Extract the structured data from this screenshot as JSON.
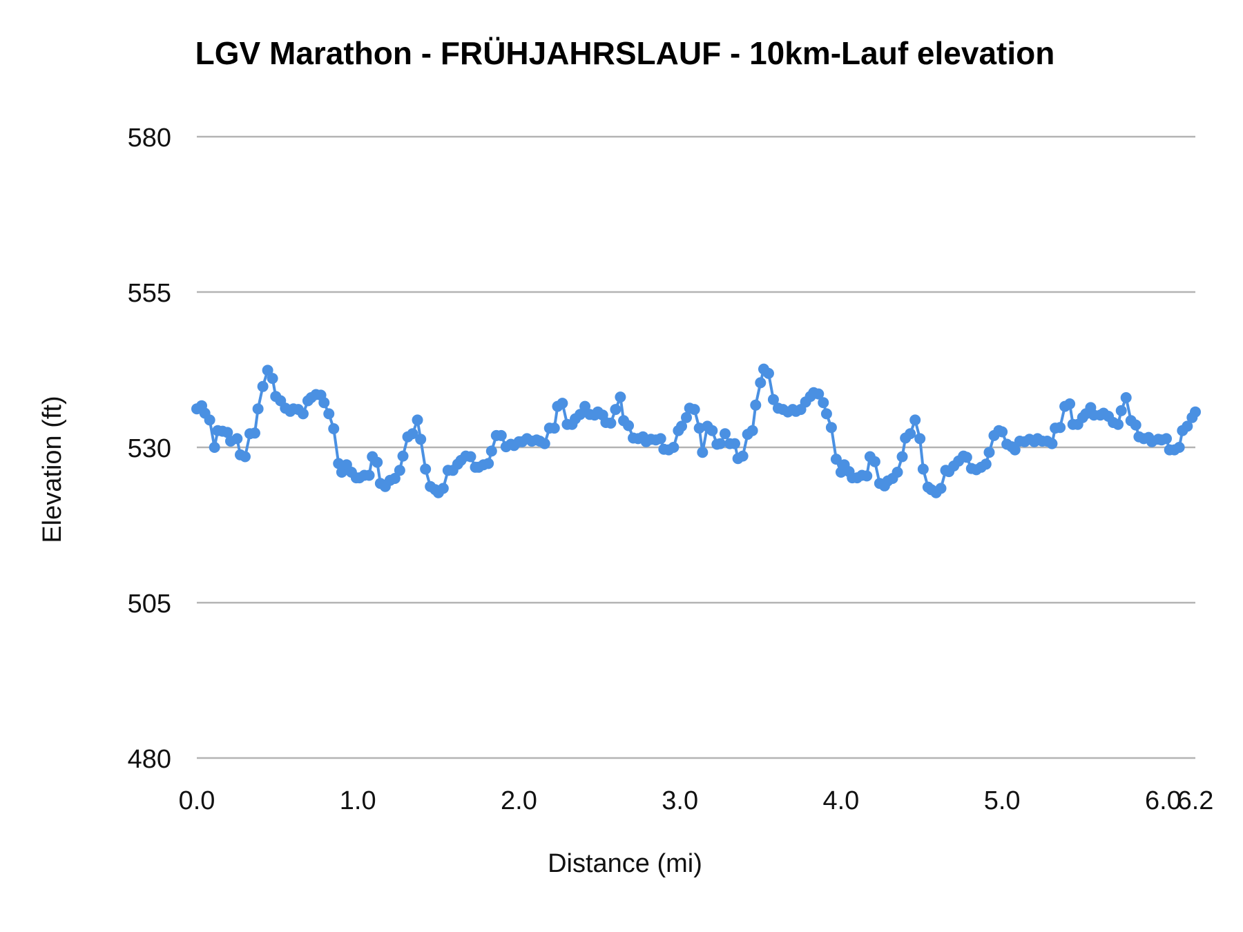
{
  "chart_data": {
    "type": "line",
    "title": "LGV Marathon - FRÜHJAHRSLAUF - 10km-Lauf elevation",
    "xlabel": "Distance (mi)",
    "ylabel": "Elevation (ft)",
    "xlim": [
      0,
      6.2
    ],
    "ylim": [
      480,
      580
    ],
    "x_ticks": [
      {
        "value": 0,
        "label": "0.0"
      },
      {
        "value": 1,
        "label": "1.0"
      },
      {
        "value": 2,
        "label": "2.0"
      },
      {
        "value": 3,
        "label": "3.0"
      },
      {
        "value": 4,
        "label": "4.0"
      },
      {
        "value": 5,
        "label": "5.0"
      },
      {
        "value": 6,
        "label": "6.0"
      },
      {
        "value": 6.2,
        "label": "6.2"
      }
    ],
    "y_ticks": [
      {
        "value": 580,
        "label": "580"
      },
      {
        "value": 555,
        "label": "555"
      },
      {
        "value": 530,
        "label": "530"
      },
      {
        "value": 505,
        "label": "505"
      },
      {
        "value": 480,
        "label": "480"
      }
    ],
    "grid": "horizontal",
    "markers": true,
    "colors": {
      "series": "#4a90e2",
      "grid": "#b3b3b3"
    },
    "series": [
      {
        "points": [
          [
            0.0,
            536.2
          ],
          [
            0.03,
            536.7
          ],
          [
            0.05,
            535.5
          ],
          [
            0.08,
            534.4
          ],
          [
            0.11,
            530.0
          ],
          [
            0.13,
            532.7
          ],
          [
            0.16,
            532.6
          ],
          [
            0.19,
            532.4
          ],
          [
            0.21,
            531.0
          ],
          [
            0.25,
            531.4
          ],
          [
            0.27,
            528.8
          ],
          [
            0.3,
            528.5
          ],
          [
            0.33,
            532.2
          ],
          [
            0.36,
            532.3
          ],
          [
            0.38,
            536.2
          ],
          [
            0.41,
            539.8
          ],
          [
            0.44,
            542.4
          ],
          [
            0.47,
            541.1
          ],
          [
            0.49,
            538.2
          ],
          [
            0.52,
            537.5
          ],
          [
            0.55,
            536.3
          ],
          [
            0.58,
            535.8
          ],
          [
            0.6,
            536.2
          ],
          [
            0.63,
            536.1
          ],
          [
            0.66,
            535.4
          ],
          [
            0.69,
            537.5
          ],
          [
            0.71,
            538.0
          ],
          [
            0.74,
            538.5
          ],
          [
            0.77,
            538.4
          ],
          [
            0.79,
            537.2
          ],
          [
            0.82,
            535.4
          ],
          [
            0.85,
            533.0
          ],
          [
            0.88,
            527.4
          ],
          [
            0.9,
            526.0
          ],
          [
            0.93,
            527.2
          ],
          [
            0.96,
            526.0
          ],
          [
            0.99,
            525.1
          ],
          [
            1.01,
            525.1
          ],
          [
            1.04,
            525.5
          ],
          [
            1.07,
            525.5
          ],
          [
            1.09,
            528.5
          ],
          [
            1.12,
            527.6
          ],
          [
            1.14,
            524.2
          ],
          [
            1.17,
            523.7
          ],
          [
            1.2,
            524.7
          ],
          [
            1.23,
            525.0
          ],
          [
            1.26,
            526.3
          ],
          [
            1.28,
            528.6
          ],
          [
            1.31,
            531.7
          ],
          [
            1.34,
            532.2
          ],
          [
            1.37,
            534.4
          ],
          [
            1.39,
            531.3
          ],
          [
            1.42,
            526.5
          ],
          [
            1.45,
            523.7
          ],
          [
            1.48,
            523.2
          ],
          [
            1.5,
            522.7
          ],
          [
            1.53,
            523.4
          ],
          [
            1.56,
            526.3
          ],
          [
            1.59,
            526.3
          ],
          [
            1.62,
            527.3
          ],
          [
            1.64,
            527.9
          ],
          [
            1.67,
            528.6
          ],
          [
            1.7,
            528.5
          ],
          [
            1.73,
            526.8
          ],
          [
            1.75,
            526.8
          ],
          [
            1.78,
            527.2
          ],
          [
            1.81,
            527.4
          ],
          [
            1.83,
            529.4
          ],
          [
            1.86,
            531.9
          ],
          [
            1.89,
            531.9
          ],
          [
            1.92,
            530.1
          ],
          [
            1.95,
            530.5
          ],
          [
            1.97,
            530.3
          ],
          [
            2.0,
            530.9
          ],
          [
            2.02,
            530.9
          ],
          [
            2.05,
            531.4
          ],
          [
            2.08,
            531.0
          ],
          [
            2.11,
            531.2
          ],
          [
            2.13,
            531.0
          ],
          [
            2.16,
            530.6
          ],
          [
            2.19,
            533.1
          ],
          [
            2.22,
            533.1
          ],
          [
            2.24,
            536.6
          ],
          [
            2.27,
            537.1
          ],
          [
            2.3,
            533.7
          ],
          [
            2.33,
            533.7
          ],
          [
            2.35,
            534.6
          ],
          [
            2.38,
            535.3
          ],
          [
            2.41,
            536.6
          ],
          [
            2.44,
            535.3
          ],
          [
            2.47,
            535.2
          ],
          [
            2.49,
            535.7
          ],
          [
            2.52,
            535.2
          ],
          [
            2.54,
            534.0
          ],
          [
            2.57,
            533.9
          ],
          [
            2.6,
            536.1
          ],
          [
            2.63,
            538.1
          ],
          [
            2.65,
            534.3
          ],
          [
            2.68,
            533.5
          ],
          [
            2.71,
            531.5
          ],
          [
            2.74,
            531.4
          ],
          [
            2.77,
            531.7
          ],
          [
            2.79,
            530.9
          ],
          [
            2.82,
            531.3
          ],
          [
            2.85,
            531.2
          ],
          [
            2.88,
            531.4
          ],
          [
            2.9,
            529.7
          ],
          [
            2.93,
            529.6
          ],
          [
            2.96,
            530.0
          ],
          [
            2.99,
            532.7
          ],
          [
            3.01,
            533.4
          ],
          [
            3.04,
            534.8
          ],
          [
            3.06,
            536.3
          ],
          [
            3.09,
            536.1
          ],
          [
            3.12,
            533.1
          ],
          [
            3.14,
            529.2
          ],
          [
            3.17,
            533.4
          ],
          [
            3.2,
            532.7
          ],
          [
            3.23,
            530.5
          ],
          [
            3.25,
            530.6
          ],
          [
            3.28,
            532.2
          ],
          [
            3.31,
            530.6
          ],
          [
            3.34,
            530.6
          ],
          [
            3.36,
            528.2
          ],
          [
            3.39,
            528.6
          ],
          [
            3.42,
            532.1
          ],
          [
            3.45,
            532.7
          ],
          [
            3.47,
            536.8
          ],
          [
            3.5,
            540.4
          ],
          [
            3.52,
            542.6
          ],
          [
            3.55,
            541.9
          ],
          [
            3.58,
            537.7
          ],
          [
            3.61,
            536.3
          ],
          [
            3.64,
            536.1
          ],
          [
            3.67,
            535.7
          ],
          [
            3.7,
            536.1
          ],
          [
            3.72,
            535.8
          ],
          [
            3.75,
            536.1
          ],
          [
            3.78,
            537.3
          ],
          [
            3.81,
            538.2
          ],
          [
            3.83,
            538.8
          ],
          [
            3.86,
            538.6
          ],
          [
            3.89,
            537.2
          ],
          [
            3.91,
            535.4
          ],
          [
            3.94,
            533.2
          ],
          [
            3.97,
            528.1
          ],
          [
            4.0,
            526.0
          ],
          [
            4.02,
            527.2
          ],
          [
            4.05,
            526.1
          ],
          [
            4.07,
            525.1
          ],
          [
            4.1,
            525.1
          ],
          [
            4.13,
            525.5
          ],
          [
            4.16,
            525.4
          ],
          [
            4.18,
            528.5
          ],
          [
            4.21,
            527.7
          ],
          [
            4.24,
            524.2
          ],
          [
            4.27,
            523.8
          ],
          [
            4.29,
            524.6
          ],
          [
            4.32,
            525.0
          ],
          [
            4.35,
            526.0
          ],
          [
            4.38,
            528.5
          ],
          [
            4.4,
            531.5
          ],
          [
            4.43,
            532.2
          ],
          [
            4.46,
            534.4
          ],
          [
            4.49,
            531.4
          ],
          [
            4.51,
            526.5
          ],
          [
            4.54,
            523.6
          ],
          [
            4.56,
            523.2
          ],
          [
            4.59,
            522.7
          ],
          [
            4.62,
            523.4
          ],
          [
            4.65,
            526.3
          ],
          [
            4.67,
            526.1
          ],
          [
            4.7,
            527.0
          ],
          [
            4.73,
            527.8
          ],
          [
            4.76,
            528.6
          ],
          [
            4.78,
            528.4
          ],
          [
            4.81,
            526.6
          ],
          [
            4.84,
            526.4
          ],
          [
            4.87,
            526.8
          ],
          [
            4.9,
            527.3
          ],
          [
            4.92,
            529.2
          ],
          [
            4.95,
            531.9
          ],
          [
            4.98,
            532.7
          ],
          [
            5.0,
            532.5
          ],
          [
            5.03,
            530.5
          ],
          [
            5.06,
            530.1
          ],
          [
            5.08,
            529.6
          ],
          [
            5.11,
            531.0
          ],
          [
            5.14,
            530.9
          ],
          [
            5.17,
            531.3
          ],
          [
            5.2,
            530.9
          ],
          [
            5.22,
            531.4
          ],
          [
            5.25,
            531.0
          ],
          [
            5.28,
            531.0
          ],
          [
            5.31,
            530.6
          ],
          [
            5.33,
            533.1
          ],
          [
            5.36,
            533.2
          ],
          [
            5.39,
            536.6
          ],
          [
            5.42,
            537.0
          ],
          [
            5.44,
            533.7
          ],
          [
            5.47,
            533.7
          ],
          [
            5.5,
            534.8
          ],
          [
            5.52,
            535.4
          ],
          [
            5.55,
            536.4
          ],
          [
            5.57,
            535.2
          ],
          [
            5.61,
            535.2
          ],
          [
            5.63,
            535.5
          ],
          [
            5.66,
            535.0
          ],
          [
            5.69,
            534.0
          ],
          [
            5.72,
            533.7
          ],
          [
            5.74,
            535.9
          ],
          [
            5.77,
            538.0
          ],
          [
            5.8,
            534.3
          ],
          [
            5.83,
            533.6
          ],
          [
            5.85,
            531.7
          ],
          [
            5.88,
            531.4
          ],
          [
            5.91,
            531.6
          ],
          [
            5.93,
            530.9
          ],
          [
            5.97,
            531.3
          ],
          [
            5.99,
            531.2
          ],
          [
            6.02,
            531.4
          ],
          [
            6.04,
            529.6
          ],
          [
            6.07,
            529.6
          ],
          [
            6.1,
            530.0
          ],
          [
            6.12,
            532.7
          ],
          [
            6.15,
            533.4
          ],
          [
            6.18,
            534.8
          ],
          [
            6.2,
            535.7
          ]
        ]
      }
    ]
  }
}
